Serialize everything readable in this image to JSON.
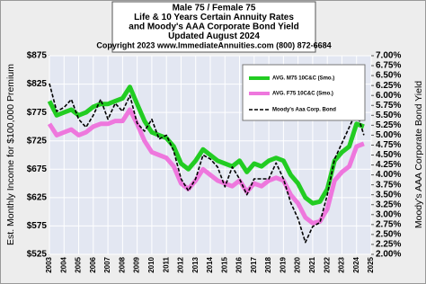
{
  "chart_data": {
    "type": "line",
    "title": "Male 75 / Female 75",
    "subtitle": [
      "Life & 10 Years Certain Annuity Rates",
      "and Moody's AAA Corporate Bond Yield",
      "Updated August 2024",
      "Copyright 2023   www.ImmediateAnnuities.com   (800) 872-6684"
    ],
    "ylabel": "Est. Monthly Income for $100,000 Premium",
    "y2label": "Moody's AAA Corporate Bond Yield",
    "x": [
      2003,
      2003.5,
      2004,
      2004.5,
      2005,
      2005.5,
      2006,
      2006.5,
      2007,
      2007.5,
      2008,
      2008.5,
      2009,
      2009.5,
      2010,
      2010.5,
      2011,
      2011.5,
      2012,
      2012.5,
      2013,
      2013.5,
      2014,
      2014.5,
      2015,
      2015.5,
      2016,
      2016.5,
      2017,
      2017.5,
      2018,
      2018.5,
      2019,
      2019.5,
      2020,
      2020.5,
      2021,
      2021.5,
      2022,
      2022.5,
      2023,
      2023.5,
      2024,
      2024.5
    ],
    "series": [
      {
        "name": "AVG. M75 10C&C (Smo.)",
        "color": "#22cc22",
        "values": [
          795,
          770,
          775,
          780,
          770,
          775,
          785,
          790,
          790,
          795,
          800,
          820,
          790,
          760,
          740,
          735,
          730,
          715,
          685,
          675,
          690,
          710,
          700,
          690,
          685,
          680,
          690,
          670,
          685,
          680,
          690,
          695,
          690,
          665,
          650,
          625,
          615,
          618,
          640,
          690,
          705,
          715,
          755,
          750
        ]
      },
      {
        "name": "AVG. F75 10C&C (Smo.)",
        "color": "#ee77dd",
        "values": [
          755,
          735,
          740,
          745,
          735,
          740,
          750,
          755,
          755,
          760,
          760,
          780,
          755,
          725,
          705,
          700,
          695,
          680,
          650,
          640,
          655,
          675,
          665,
          655,
          650,
          645,
          655,
          635,
          650,
          645,
          655,
          660,
          655,
          630,
          615,
          590,
          580,
          583,
          605,
          655,
          670,
          680,
          715,
          720
        ]
      },
      {
        "name": "Moody's Aaa Corp. Bond",
        "color": "#000000",
        "axis": "y2",
        "dashed": true,
        "values": [
          6.3,
          5.6,
          5.7,
          5.9,
          5.4,
          5.2,
          5.5,
          5.9,
          5.4,
          5.8,
          5.6,
          6.0,
          5.3,
          5.1,
          5.4,
          4.9,
          5.0,
          4.6,
          3.9,
          3.6,
          3.9,
          4.5,
          4.4,
          4.2,
          3.7,
          4.2,
          3.9,
          3.5,
          3.9,
          3.9,
          3.9,
          4.3,
          3.9,
          3.3,
          2.9,
          2.3,
          2.7,
          2.8,
          3.5,
          4.4,
          4.8,
          5.2,
          5.6,
          5.0
        ]
      }
    ],
    "xlim": [
      2003,
      2025
    ],
    "xticks": [
      2003,
      2004,
      2005,
      2006,
      2007,
      2008,
      2009,
      2010,
      2011,
      2012,
      2013,
      2014,
      2015,
      2016,
      2017,
      2018,
      2019,
      2020,
      2021,
      2022,
      2023,
      2024,
      2025
    ],
    "ylim": [
      525,
      875
    ],
    "yticks": [
      {
        "value": 525,
        "label": "$525"
      },
      {
        "value": 575,
        "label": "$575"
      },
      {
        "value": 625,
        "label": "$625"
      },
      {
        "value": 675,
        "label": "$675"
      },
      {
        "value": 725,
        "label": "$725"
      },
      {
        "value": 775,
        "label": "$775"
      },
      {
        "value": 825,
        "label": "$825"
      },
      {
        "value": 875,
        "label": "$875"
      }
    ],
    "y2lim": [
      2,
      7
    ],
    "y2ticks": [
      {
        "value": 2,
        "label": "2.00%"
      },
      {
        "value": 2.25,
        "label": "2.25%"
      },
      {
        "value": 2.5,
        "label": "2.50%"
      },
      {
        "value": 2.75,
        "label": "2.75%"
      },
      {
        "value": 3,
        "label": "3.00%"
      },
      {
        "value": 3.25,
        "label": "3.25%"
      },
      {
        "value": 3.5,
        "label": "3.50%"
      },
      {
        "value": 3.75,
        "label": "3.75%"
      },
      {
        "value": 4,
        "label": "4.00%"
      },
      {
        "value": 4.25,
        "label": "4.25%"
      },
      {
        "value": 4.5,
        "label": "4.50%"
      },
      {
        "value": 4.75,
        "label": "4.75%"
      },
      {
        "value": 5,
        "label": "5.00%"
      },
      {
        "value": 5.25,
        "label": "5.25%"
      },
      {
        "value": 5.5,
        "label": "5.50%"
      },
      {
        "value": 5.75,
        "label": "5.75%"
      },
      {
        "value": 6,
        "label": "6.00%"
      },
      {
        "value": 6.25,
        "label": "6.25%"
      },
      {
        "value": 6.5,
        "label": "6.50%"
      },
      {
        "value": 6.75,
        "label": "6.75%"
      },
      {
        "value": 7,
        "label": "7.00%"
      }
    ],
    "grid": true,
    "legend": "upper right"
  }
}
